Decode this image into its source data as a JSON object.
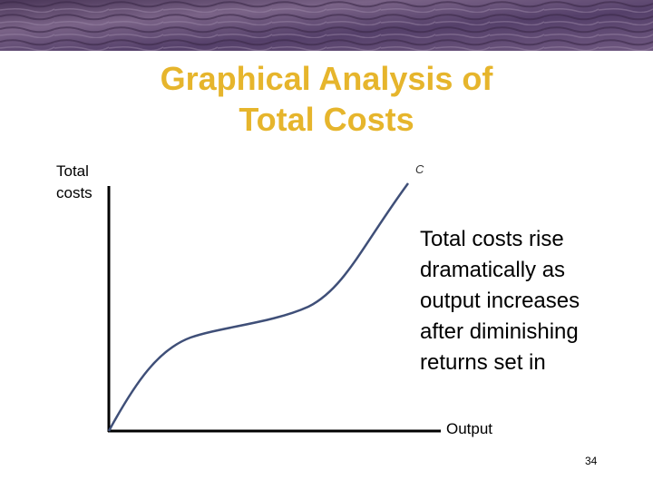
{
  "header": {
    "title_lines": [
      "Graphical Analysis of",
      "Total Costs"
    ]
  },
  "diagram": {
    "y_axis_label_lines": [
      "Total",
      "costs"
    ],
    "x_axis_label": "Output",
    "curve_label": "C",
    "annotation_lines": [
      "Total costs rise",
      "dramatically as",
      "output increases",
      "after diminishing",
      "returns set in"
    ]
  },
  "footer": {
    "page_number": "34"
  }
}
